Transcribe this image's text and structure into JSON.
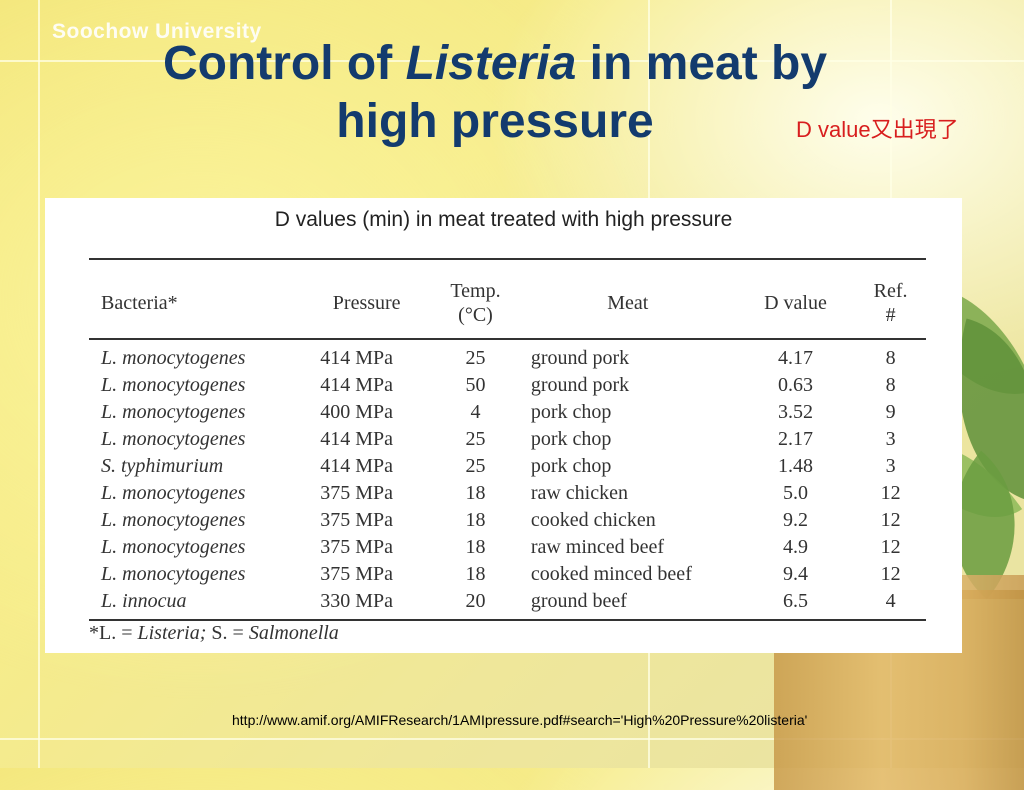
{
  "brand": "Soochow University",
  "title": {
    "prefix": "Control of ",
    "italic": "Listeria",
    "line1_suffix": " in meat by",
    "line2": "high pressure"
  },
  "note": "D value又出現了",
  "table": {
    "caption": "D values (min) in meat treated with high pressure",
    "headers": {
      "bacteria": "Bacteria*",
      "pressure": "Pressure",
      "temp_line1": "Temp.",
      "temp_line2": "(°C)",
      "meat": "Meat",
      "dvalue": "D value",
      "ref_line1": "Ref.",
      "ref_line2": "#"
    },
    "rows": [
      {
        "bacteria": "L. monocytogenes",
        "pressure": "414 MPa",
        "temp": "25",
        "meat": "ground pork",
        "dvalue": "4.17",
        "ref": "8"
      },
      {
        "bacteria": "L. monocytogenes",
        "pressure": "414 MPa",
        "temp": "50",
        "meat": "ground pork",
        "dvalue": "0.63",
        "ref": "8"
      },
      {
        "bacteria": "L. monocytogenes",
        "pressure": "400 MPa",
        "temp": "4",
        "meat": "pork chop",
        "dvalue": "3.52",
        "ref": "9"
      },
      {
        "bacteria": "L. monocytogenes",
        "pressure": "414 MPa",
        "temp": "25",
        "meat": "pork chop",
        "dvalue": "2.17",
        "ref": "3"
      },
      {
        "bacteria": "S. typhimurium",
        "pressure": "414 MPa",
        "temp": "25",
        "meat": "pork chop",
        "dvalue": "1.48",
        "ref": "3"
      },
      {
        "bacteria": "L. monocytogenes",
        "pressure": "375 MPa",
        "temp": "18",
        "meat": "raw chicken",
        "dvalue": "5.0",
        "ref": "12"
      },
      {
        "bacteria": "L. monocytogenes",
        "pressure": "375 MPa",
        "temp": "18",
        "meat": "cooked chicken",
        "dvalue": "9.2",
        "ref": "12"
      },
      {
        "bacteria": "L. monocytogenes",
        "pressure": "375 MPa",
        "temp": "18",
        "meat": "raw minced beef",
        "dvalue": "4.9",
        "ref": "12"
      },
      {
        "bacteria": "L. monocytogenes",
        "pressure": "375 MPa",
        "temp": "18",
        "meat": "cooked minced beef",
        "dvalue": "9.4",
        "ref": "12"
      },
      {
        "bacteria": "L. innocua",
        "pressure": "330 MPa",
        "temp": "20",
        "meat": "ground beef",
        "dvalue": "6.5",
        "ref": "4"
      }
    ],
    "footnote": {
      "prefix": "*L. = ",
      "listeria": "Listeria;",
      "middle": " S. = ",
      "salmonella": "Salmonella"
    }
  },
  "source_url": "http://www.amif.org/AMIFResearch/1AMIpressure.pdf#search='High%20Pressure%20listeria'"
}
